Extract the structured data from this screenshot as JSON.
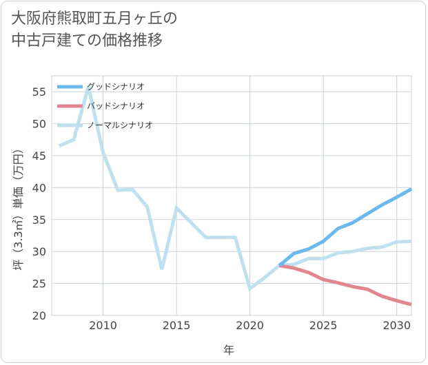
{
  "chart_data": {
    "type": "line",
    "title_lines": [
      "大阪府熊取町五月ヶ丘の",
      "中古戸建ての価格推移"
    ],
    "xlabel": "年",
    "ylabel": "坪（3.3㎡）単価（万円）",
    "xlim": [
      2006.5,
      2031
    ],
    "ylim": [
      20,
      57.5
    ],
    "xticks": [
      2010,
      2015,
      2020,
      2025,
      2030
    ],
    "yticks": [
      20,
      25,
      30,
      35,
      40,
      45,
      50,
      55
    ],
    "grid": true,
    "legend_position": "top-left",
    "series": [
      {
        "name": "グッドシナリオ",
        "color": "#6cb9ee",
        "x": [
          2022,
          2023,
          2024,
          2025,
          2026,
          2027,
          2028,
          2029,
          2030,
          2031
        ],
        "values": [
          27.8,
          29.7,
          30.4,
          31.6,
          33.6,
          34.5,
          35.9,
          37.3,
          38.5,
          39.8
        ]
      },
      {
        "name": "バッドシナリオ",
        "color": "#e0868e",
        "x": [
          2022,
          2023,
          2024,
          2025,
          2026,
          2027,
          2028,
          2029,
          2030,
          2031
        ],
        "values": [
          27.8,
          27.4,
          26.7,
          25.6,
          25.1,
          24.5,
          24.1,
          23.0,
          22.3,
          21.7
        ]
      },
      {
        "name": "ノーマルシナリオ",
        "color": "#bfe0ee",
        "x": [
          2007,
          2008,
          2009,
          2010,
          2011,
          2012,
          2013,
          2014,
          2015,
          2016,
          2017,
          2018,
          2019,
          2020,
          2021,
          2022,
          2023,
          2024,
          2025,
          2026,
          2027,
          2028,
          2029,
          2030,
          2031
        ],
        "values": [
          46.5,
          47.5,
          55.8,
          45.5,
          39.6,
          39.7,
          37.0,
          27.2,
          36.8,
          34.5,
          32.2,
          32.2,
          32.2,
          24.2,
          25.9,
          27.8,
          28.0,
          28.9,
          28.9,
          29.8,
          30.0,
          30.5,
          30.7,
          31.5,
          31.6
        ]
      }
    ]
  }
}
